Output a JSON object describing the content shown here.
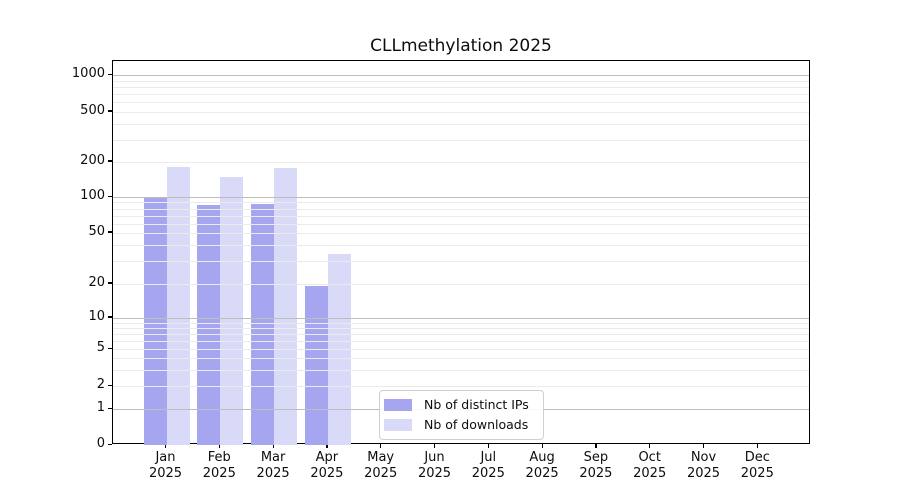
{
  "chart_data": {
    "type": "bar",
    "title": "CLLmethylation 2025",
    "xlabel": "",
    "ylabel": "",
    "categories": [
      "Jan 2025",
      "Feb 2025",
      "Mar 2025",
      "Apr 2025",
      "May 2025",
      "Jun 2025",
      "Jul 2025",
      "Aug 2025",
      "Sep 2025",
      "Oct 2025",
      "Nov 2025",
      "Dec 2025"
    ],
    "series": [
      {
        "key": "ips",
        "name": "Nb of distinct IPs",
        "color": "#a5a5f0",
        "values": [
          100,
          85,
          87,
          19,
          0,
          0,
          0,
          0,
          0,
          0,
          0,
          0
        ]
      },
      {
        "key": "downloads",
        "name": "Nb of downloads",
        "color": "#d9d9f8",
        "values": [
          180,
          150,
          178,
          34,
          0,
          0,
          0,
          0,
          0,
          0,
          0,
          0
        ]
      }
    ],
    "y_ticks": [
      1000,
      500,
      200,
      100,
      50,
      20,
      10,
      5,
      2,
      1,
      0
    ],
    "y_scale": "symlog",
    "ylim": [
      0,
      1400
    ],
    "grid": "horizontal, major and minor lines on",
    "legend_position": "inside plot, lower center",
    "axis_anchors": [
      [
        1000,
        0.0365
      ],
      [
        500,
        0.1323
      ],
      [
        200,
        0.263
      ],
      [
        100,
        0.3542
      ],
      [
        50,
        0.4479
      ],
      [
        20,
        0.5807
      ],
      [
        10,
        0.6685
      ],
      [
        5,
        0.7508
      ],
      [
        2,
        0.8464
      ],
      [
        1,
        0.9063
      ],
      [
        0,
        1.0
      ]
    ],
    "major_gridlines": [
      1,
      10,
      100,
      1000
    ],
    "minor_gridlines": [
      2,
      3,
      4,
      5,
      6,
      7,
      8,
      9,
      20,
      30,
      40,
      50,
      60,
      70,
      80,
      90,
      200,
      300,
      400,
      500,
      600,
      700,
      800,
      900
    ]
  }
}
